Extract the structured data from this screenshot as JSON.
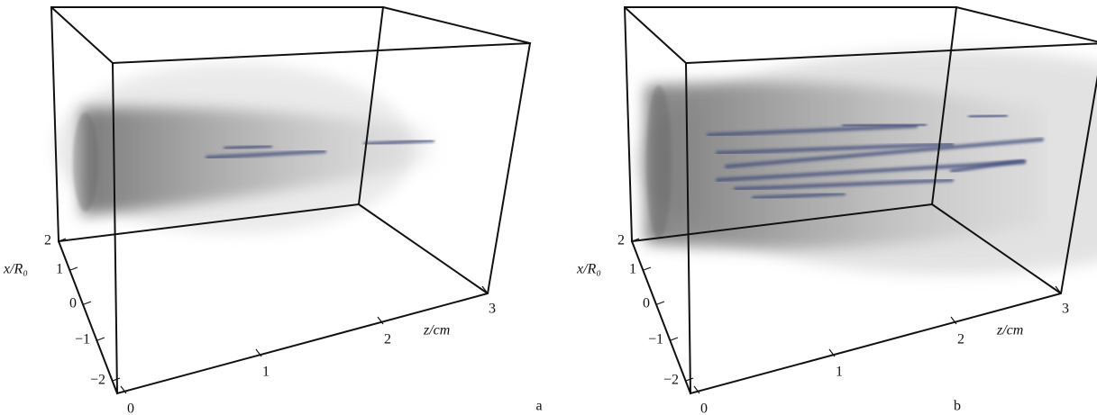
{
  "panels": [
    {
      "label": "a",
      "x_axis_label": "x/R₀",
      "x_ticks": [
        "2",
        "1",
        "0",
        "−1",
        "−2"
      ],
      "z_axis_label": "z/cm",
      "z_ticks": [
        "0",
        "1",
        "2",
        "3"
      ]
    },
    {
      "label": "b",
      "x_axis_label": "x/R₀",
      "x_ticks": [
        "2",
        "1",
        "0",
        "−1",
        "−2"
      ],
      "z_axis_label": "z/cm",
      "z_ticks": [
        "0",
        "1",
        "2",
        "3"
      ]
    }
  ]
}
